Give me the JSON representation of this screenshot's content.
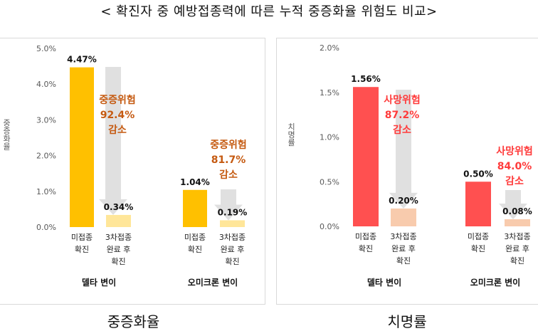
{
  "page_title": "< 확진자 중 예방접종력에 따른 누적 중증화율 위험도 비교>",
  "colors": {
    "unvacc_left": "#FFC000",
    "vacc_left": "#FFE699",
    "unvacc_right": "#FF5050",
    "vacc_right": "#F8CBAD",
    "reduction_left": "#C55A11",
    "reduction_right": "#FF3B3B",
    "arrow": "#E0E0E0"
  },
  "chart_data": [
    {
      "type": "bar",
      "caption": "중증화율",
      "ylabel": "중증화율",
      "ylim": [
        0,
        5.0
      ],
      "yticks": [
        "0.0%",
        "1.0%",
        "2.0%",
        "3.0%",
        "4.0%",
        "5.0%"
      ],
      "grid": false,
      "groups": [
        {
          "name": "델타 변이",
          "bars": [
            {
              "category": [
                "미접종",
                "확진"
              ],
              "value": 4.47,
              "label": "4.47%",
              "kind": "unvaccinated"
            },
            {
              "category": [
                "3차접종",
                "완료 후",
                "확진"
              ],
              "value": 0.34,
              "label": "0.34%",
              "kind": "vaccinated"
            }
          ],
          "reduction": [
            "중증위험",
            "92.4%",
            "감소"
          ]
        },
        {
          "name": "오미크론 변이",
          "bars": [
            {
              "category": [
                "미접종",
                "확진"
              ],
              "value": 1.04,
              "label": "1.04%",
              "kind": "unvaccinated"
            },
            {
              "category": [
                "3차접종",
                "완료 후",
                "확진"
              ],
              "value": 0.19,
              "label": "0.19%",
              "kind": "vaccinated"
            }
          ],
          "reduction": [
            "중증위험",
            "81.7%",
            "감소"
          ]
        }
      ]
    },
    {
      "type": "bar",
      "caption": "치명률",
      "ylabel": "치명률",
      "ylim": [
        0,
        2.0
      ],
      "yticks": [
        "0.0%",
        "0.5%",
        "1.0%",
        "1.5%",
        "2.0%"
      ],
      "grid": false,
      "groups": [
        {
          "name": "델타 변이",
          "bars": [
            {
              "category": [
                "미접종",
                "확진"
              ],
              "value": 1.56,
              "label": "1.56%",
              "kind": "unvaccinated"
            },
            {
              "category": [
                "3차접종",
                "완료 후",
                "확진"
              ],
              "value": 0.2,
              "label": "0.20%",
              "kind": "vaccinated"
            }
          ],
          "reduction": [
            "사망위험",
            "87.2%",
            "감소"
          ]
        },
        {
          "name": "오미크론 변이",
          "bars": [
            {
              "category": [
                "미접종",
                "확진"
              ],
              "value": 0.5,
              "label": "0.50%",
              "kind": "unvaccinated"
            },
            {
              "category": [
                "3차접종",
                "완료 후",
                "확진"
              ],
              "value": 0.08,
              "label": "0.08%",
              "kind": "vaccinated"
            }
          ],
          "reduction": [
            "사망위험",
            "84.0%",
            "감소"
          ]
        }
      ]
    }
  ]
}
